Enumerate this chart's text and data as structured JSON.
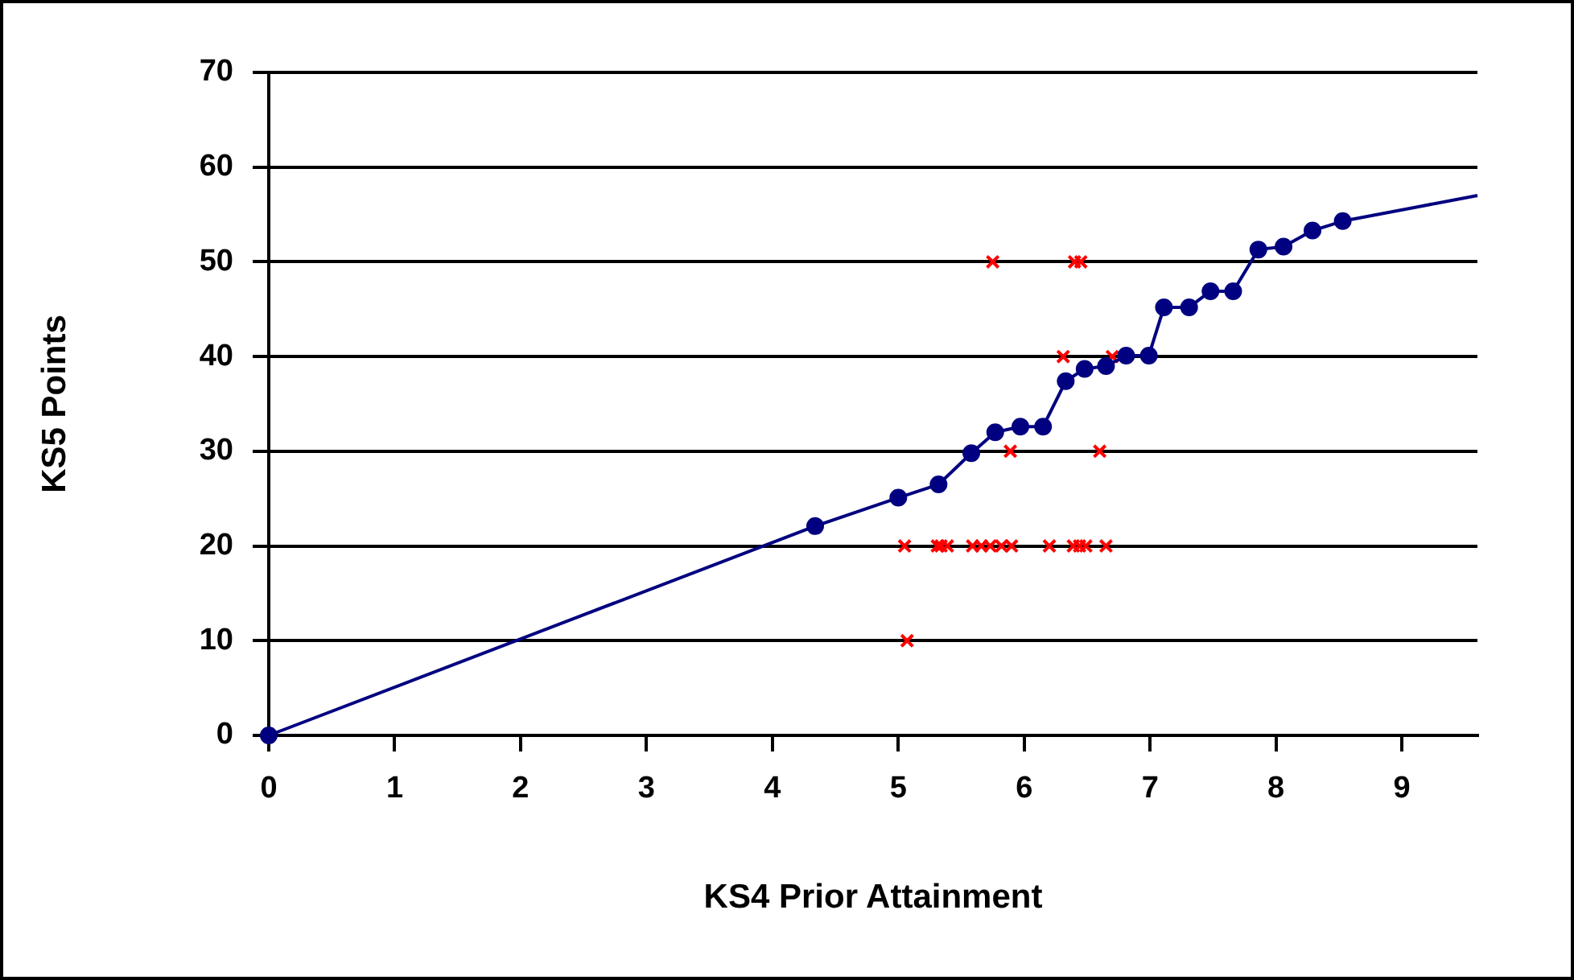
{
  "chart_data": {
    "type": "scatter",
    "xlabel": "KS4 Prior Attainment",
    "ylabel": "KS5 Points",
    "xlim": [
      0,
      9.6
    ],
    "xticks": [
      0,
      1,
      2,
      3,
      4,
      5,
      6,
      7,
      8,
      9
    ],
    "ylim": [
      0,
      70
    ],
    "yticks": [
      0,
      10,
      20,
      30,
      40,
      50,
      60,
      70
    ],
    "grid": "y",
    "legend": false,
    "series": [
      {
        "type": "line",
        "color": "#000080",
        "marker": "circle",
        "x": [
          0,
          4.34,
          5.0,
          5.32,
          5.58,
          5.77,
          5.97,
          6.15,
          6.33,
          6.48,
          6.65,
          6.81,
          6.99,
          7.11,
          7.31,
          7.48,
          7.66,
          7.86,
          8.06,
          8.29,
          8.53
        ],
        "values": [
          0,
          22.1,
          25.1,
          26.5,
          29.8,
          32.0,
          32.6,
          32.6,
          37.4,
          38.7,
          39.0,
          40.1,
          40.1,
          45.2,
          45.2,
          46.9,
          46.9,
          51.3,
          51.6,
          53.3,
          54.3
        ]
      },
      {
        "type": "line",
        "color": "#000080",
        "marker": "none",
        "x": [
          8.53,
          9.6
        ],
        "values": [
          54.3,
          57.0
        ]
      },
      {
        "type": "scatter",
        "color": "#ff0000",
        "marker": "cross",
        "x": [
          5.75,
          6.4,
          6.45,
          6.31,
          6.7,
          5.89,
          6.6,
          5.05,
          5.31,
          5.34,
          5.39,
          5.59,
          5.66,
          5.73,
          5.82,
          5.9,
          6.2,
          6.39,
          6.44,
          6.49,
          6.65,
          5.07
        ],
        "values": [
          50,
          50,
          50,
          40,
          40,
          30,
          30,
          20,
          20,
          20,
          20,
          20,
          20,
          20,
          20,
          20,
          20,
          20,
          20,
          20,
          20,
          10
        ]
      }
    ]
  }
}
